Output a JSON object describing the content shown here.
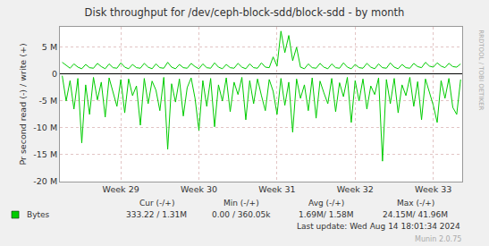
{
  "chart_data": {
    "type": "line",
    "title": "Disk throughput for /dev/ceph-block-sdd/block-sdd - by month",
    "y_label": "Pr second read (-) / write (+)",
    "x": [
      28.25,
      28.3,
      28.35,
      28.4,
      28.45,
      28.5,
      28.55,
      28.6,
      28.65,
      28.7,
      28.75,
      28.8,
      28.85,
      28.9,
      28.95,
      29.0,
      29.05,
      29.1,
      29.15,
      29.2,
      29.25,
      29.3,
      29.35,
      29.4,
      29.45,
      29.5,
      29.55,
      29.6,
      29.65,
      29.7,
      29.75,
      29.8,
      29.85,
      29.9,
      29.95,
      30.0,
      30.05,
      30.1,
      30.15,
      30.2,
      30.25,
      30.3,
      30.35,
      30.4,
      30.45,
      30.5,
      30.55,
      30.6,
      30.65,
      30.7,
      30.75,
      30.8,
      30.85,
      30.9,
      30.95,
      31.0,
      31.05,
      31.1,
      31.15,
      31.2,
      31.25,
      31.3,
      31.35,
      31.4,
      31.45,
      31.5,
      31.55,
      31.6,
      31.65,
      31.7,
      31.75,
      31.8,
      31.85,
      31.9,
      31.95,
      32.0,
      32.05,
      32.1,
      32.15,
      32.2,
      32.25,
      32.3,
      32.35,
      32.4,
      32.45,
      32.5,
      32.55,
      32.6,
      32.65,
      32.7,
      32.75,
      32.8,
      32.85,
      32.9,
      32.95,
      33.0,
      33.05,
      33.1,
      33.15,
      33.2,
      33.25,
      33.3,
      33.35
    ],
    "series": [
      {
        "name": "Bytes",
        "color": "#00cc00",
        "values": [
          2200000,
          1600000,
          1100000,
          1900000,
          1300000,
          1000000,
          1800000,
          1200000,
          1100000,
          2000000,
          1400000,
          1000000,
          1900000,
          1200000,
          1100000,
          2100000,
          1300000,
          1000000,
          1800000,
          1200000,
          1100000,
          2000000,
          1300000,
          1000000,
          1900000,
          1200000,
          1100000,
          2200000,
          1300000,
          1000000,
          1800000,
          1200000,
          1100000,
          2000000,
          1400000,
          1000000,
          1900000,
          1200000,
          1100000,
          2100000,
          1300000,
          1000000,
          1800000,
          1200000,
          1100000,
          2000000,
          1300000,
          1000000,
          1900000,
          1200000,
          1100000,
          2100000,
          1300000,
          1200000,
          3200000,
          1500000,
          8000000,
          4000000,
          7200000,
          2500000,
          5000000,
          1300000,
          1000000,
          1900000,
          1200000,
          1100000,
          2000000,
          1300000,
          1000000,
          1900000,
          1200000,
          1100000,
          2100000,
          1300000,
          1000000,
          1800000,
          1200000,
          1100000,
          2000000,
          1300000,
          1000000,
          1900000,
          1200000,
          1100000,
          2100000,
          1300000,
          1000000,
          1800000,
          1200000,
          1100000,
          2000000,
          1400000,
          1200000,
          2200000,
          1500000,
          1300000,
          2100000,
          1500000,
          1200000,
          2000000,
          1400000,
          1300000,
          1900000
        ]
      },
      {
        "name": "Bytes",
        "color": "#00cc00",
        "values": [
          -300000,
          -5000000,
          -1200000,
          -6500000,
          -800000,
          -12800000,
          -2000000,
          -7500000,
          -600000,
          -4800000,
          -1500000,
          -8000000,
          -700000,
          -3500000,
          -6000000,
          -1000000,
          -7200000,
          -900000,
          -4000000,
          -2200000,
          -9500000,
          -800000,
          -5500000,
          -1300000,
          -3000000,
          -6800000,
          -600000,
          -14000000,
          -1800000,
          -5200000,
          -900000,
          -7800000,
          -2500000,
          -700000,
          -4500000,
          -10500000,
          -1200000,
          -6000000,
          -800000,
          -9800000,
          -2000000,
          -5000000,
          -700000,
          -7000000,
          -1500000,
          -3800000,
          -600000,
          -8500000,
          -1200000,
          -5500000,
          -900000,
          -4000000,
          -6800000,
          -1000000,
          -3200000,
          -7500000,
          -800000,
          -5800000,
          -1500000,
          -10800000,
          -900000,
          -4500000,
          -2000000,
          -6800000,
          -700000,
          -8200000,
          -1300000,
          -3500000,
          -5500000,
          -800000,
          -7000000,
          -1600000,
          -4200000,
          -600000,
          -9000000,
          -1200000,
          -5000000,
          -900000,
          -6500000,
          -2200000,
          -3800000,
          -700000,
          -16200000,
          -1000000,
          -5500000,
          -800000,
          -7200000,
          -2000000,
          -4000000,
          -600000,
          -6000000,
          -1400000,
          -8500000,
          -900000,
          -3500000,
          -5800000,
          -9000000,
          -1200000,
          -4500000,
          -800000,
          -6200000,
          -7500000,
          -1000000
        ]
      }
    ],
    "xlim": [
      28.22,
      33.37
    ],
    "xticks": [
      {
        "value": 29,
        "label": "Week 29"
      },
      {
        "value": 30,
        "label": "Week 30"
      },
      {
        "value": 31,
        "label": "Week 31"
      },
      {
        "value": 32,
        "label": "Week 32"
      },
      {
        "value": 33,
        "label": "Week 33"
      }
    ],
    "ylim": [
      -20000000,
      8800000
    ],
    "yticks": [
      {
        "value": -20000000,
        "label": "-20 M"
      },
      {
        "value": -15000000,
        "label": "-15 M"
      },
      {
        "value": -10000000,
        "label": "-10 M"
      },
      {
        "value": -5000000,
        "label": "-5 M"
      },
      0,
      {
        "value": 5000000,
        "label": "5 M"
      }
    ],
    "grid": true,
    "annotations": [
      "RRDTOOL / TOBI OETIKER",
      "Cur (-/+)",
      "Min (-/+)",
      "Avg (-/+)",
      "Max (-/+)",
      "333.22 / 1.31M",
      "0.00 / 360.05k",
      "1.69M/ 1.58M",
      "24.15M/ 41.96M",
      "Last update: Wed Aug 14 18:01:34 2024",
      "Munin 2.0.75"
    ]
  }
}
